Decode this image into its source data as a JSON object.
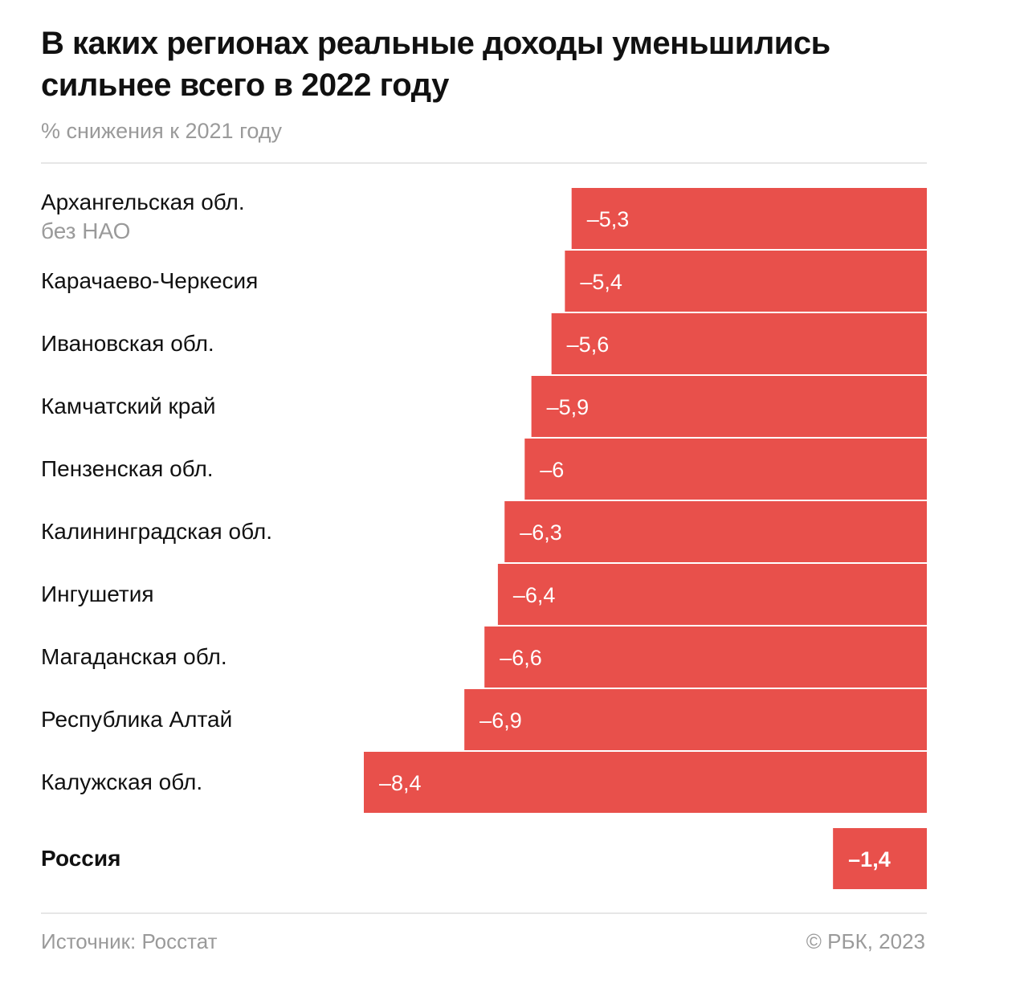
{
  "header": {
    "title": "В каких регионах реальные доходы уменьшились сильнее всего в 2022 году",
    "subtitle": "% снижения к 2021 году"
  },
  "footer": {
    "source": "Источник: Росстат",
    "copyright": "© РБК, 2023"
  },
  "colors": {
    "bar": "#e8504b",
    "bar_text": "#ffffff"
  },
  "chart_data": {
    "type": "bar",
    "orientation": "horizontal",
    "title": "В каких регионах реальные доходы уменьшились сильнее всего в 2022 году",
    "subtitle": "% снижения к 2021 году",
    "xlim": [
      -8.4,
      0
    ],
    "categories": [
      {
        "name": "Архангельская обл.",
        "sub": "без НАО",
        "value": -5.3,
        "label": "–5,3"
      },
      {
        "name": "Карачаево-Черкесия",
        "value": -5.4,
        "label": "–5,4"
      },
      {
        "name": "Ивановская обл.",
        "value": -5.6,
        "label": "–5,6"
      },
      {
        "name": "Камчатский край",
        "value": -5.9,
        "label": "–5,9"
      },
      {
        "name": "Пензенская обл.",
        "value": -6.0,
        "label": "–6"
      },
      {
        "name": "Калининградская обл.",
        "value": -6.3,
        "label": "–6,3"
      },
      {
        "name": "Ингушетия",
        "value": -6.4,
        "label": "–6,4"
      },
      {
        "name": "Магаданская обл.",
        "value": -6.6,
        "label": "–6,6"
      },
      {
        "name": "Республика Алтай",
        "value": -6.9,
        "label": "–6,9"
      },
      {
        "name": "Калужская обл.",
        "value": -8.4,
        "label": "–8,4"
      }
    ],
    "total": {
      "name": "Россия",
      "value": -1.4,
      "label": "–1,4"
    }
  }
}
